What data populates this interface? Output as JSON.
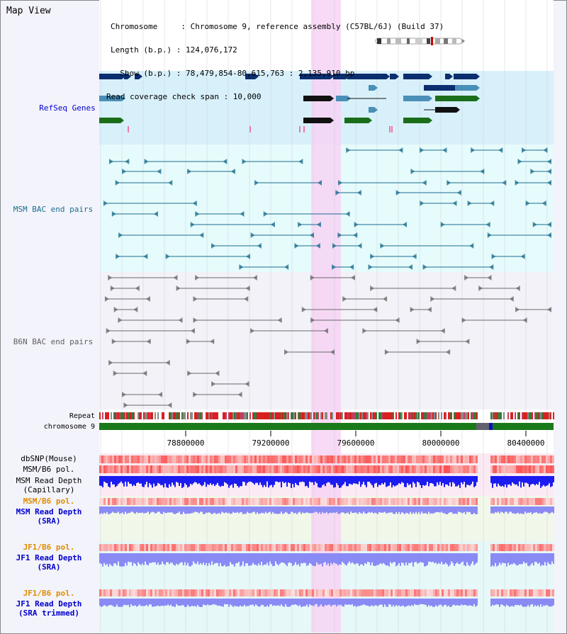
{
  "view": {
    "title": "Map View"
  },
  "header": {
    "chromosome_line": "Chromosome     : Chromosome 9, reference assembly (C57BL/6J) (Build 37)",
    "length_line": "Length (b.p.) : 124,076,172",
    "show_line": "  Show (b.p.) : 78,479,854-80,615,763 : 2,135,910 bp",
    "coverage_line": "Read coverage check span : 10,000"
  },
  "tracks": {
    "refseq": {
      "label": "RefSeq Genes",
      "color": "#0000cc"
    },
    "msm_bac": {
      "label": "MSM BAC end pairs",
      "color": "#1a6e8f"
    },
    "b6n_bac": {
      "label": "B6N BAC end pairs",
      "color": "#606060"
    },
    "repeat": {
      "label": "Repeat"
    },
    "chromosome": {
      "label": "chromosome 9"
    },
    "dbsnp": {
      "label": "dbSNP(Mouse)"
    },
    "msm_b6_pol_1": {
      "label": "MSM/B6 pol."
    },
    "msm_depth_cap": {
      "line1": "MSM Read Depth",
      "line2": "(Capillary)"
    },
    "msm_b6_pol_2": {
      "label": "MSM/B6 pol.",
      "color": "#e08c00"
    },
    "msm_depth_sra": {
      "line1": "MSM Read Depth",
      "line2": "(SRA)",
      "color": "#0000cc"
    },
    "jf1_b6_pol_1": {
      "label": "JF1/B6 pol.",
      "color": "#e08c00"
    },
    "jf1_depth_sra": {
      "line1": "JF1 Read Depth",
      "line2": "(SRA)",
      "color": "#0000cc"
    },
    "jf1_b6_pol_2": {
      "label": "JF1/B6 pol.",
      "color": "#e08c00"
    },
    "jf1_depth_trim": {
      "line1": "JF1 Read Depth",
      "line2": "(SRA trimmed)",
      "color": "#0000cc"
    }
  },
  "axis": {
    "ticks": [
      "78800000",
      "79200000",
      "79600000",
      "80000000",
      "80400000"
    ]
  },
  "colors": {
    "highlight": "#f7d4f4",
    "refseq_bg": "#d8f0fa",
    "msm_bg": "#e6fbfb",
    "b6n_bg": "#f2f2f8",
    "chromosome_band": "#1a7a1a",
    "depth_dark": "#1c1cf0",
    "depth_light": "#8a8af5"
  }
}
